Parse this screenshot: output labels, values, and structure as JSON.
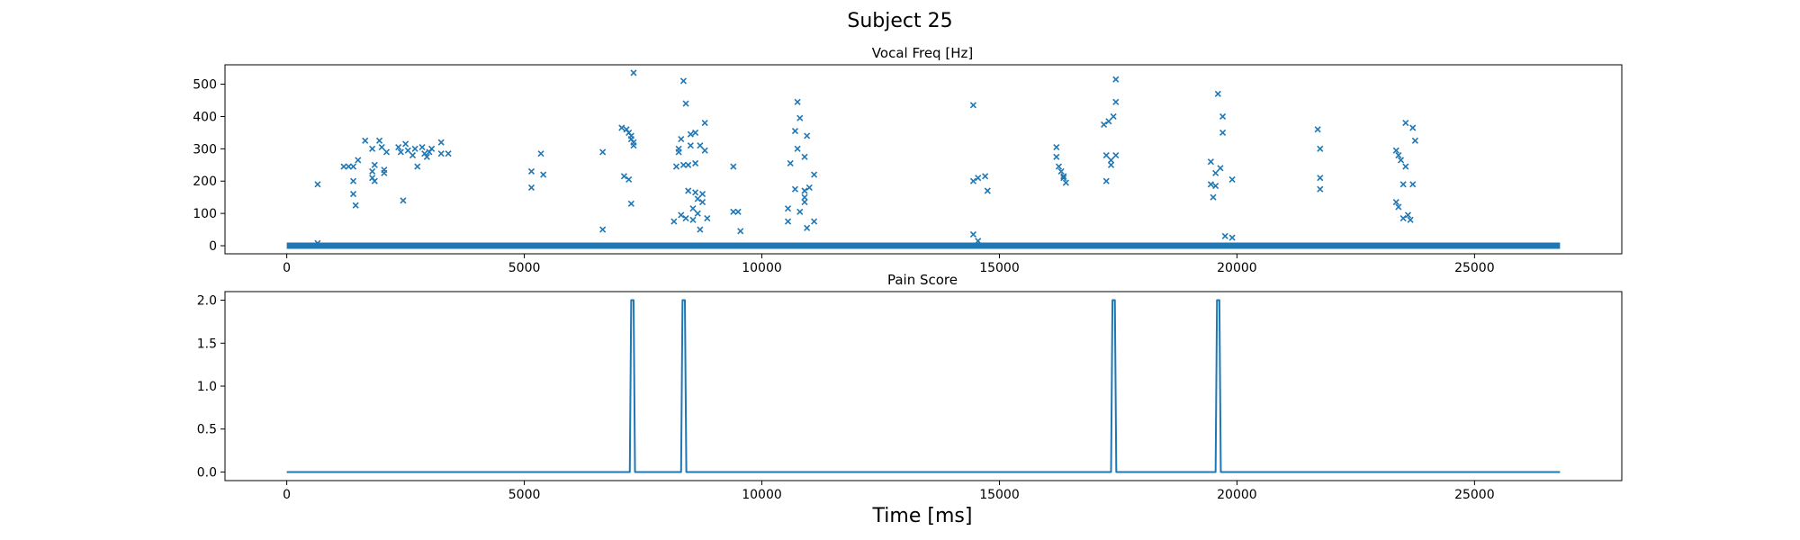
{
  "figure": {
    "suptitle": "Subject 25",
    "xlabel": "Time [ms]"
  },
  "colors": {
    "series": "#1f77b4",
    "axes": "#000000"
  },
  "chart_data": [
    {
      "type": "scatter",
      "title": "Vocal Freq [Hz]",
      "marker": "x",
      "xlim": [
        -1300,
        28100
      ],
      "ylim": [
        -25,
        560
      ],
      "xticks": [
        0,
        5000,
        10000,
        15000,
        20000,
        25000
      ],
      "yticks": [
        0,
        100,
        200,
        300,
        400,
        500
      ],
      "baseline": {
        "x_start": 0,
        "x_end": 26800,
        "y": 0
      },
      "points": [
        [
          650,
          190
        ],
        [
          650,
          8
        ],
        [
          1200,
          245
        ],
        [
          1300,
          245
        ],
        [
          1400,
          245
        ],
        [
          1400,
          200
        ],
        [
          1400,
          160
        ],
        [
          1450,
          125
        ],
        [
          1500,
          265
        ],
        [
          1650,
          325
        ],
        [
          1800,
          300
        ],
        [
          1850,
          250
        ],
        [
          1800,
          230
        ],
        [
          1800,
          210
        ],
        [
          1850,
          200
        ],
        [
          1950,
          325
        ],
        [
          2000,
          305
        ],
        [
          2050,
          235
        ],
        [
          2050,
          225
        ],
        [
          2100,
          290
        ],
        [
          2350,
          305
        ],
        [
          2400,
          290
        ],
        [
          2450,
          140
        ],
        [
          2500,
          315
        ],
        [
          2550,
          295
        ],
        [
          2650,
          280
        ],
        [
          2700,
          300
        ],
        [
          2750,
          245
        ],
        [
          2850,
          305
        ],
        [
          2900,
          285
        ],
        [
          2950,
          275
        ],
        [
          3000,
          290
        ],
        [
          3050,
          300
        ],
        [
          3250,
          320
        ],
        [
          3250,
          285
        ],
        [
          3400,
          285
        ],
        [
          5150,
          230
        ],
        [
          5150,
          180
        ],
        [
          5350,
          285
        ],
        [
          5400,
          220
        ],
        [
          6650,
          290
        ],
        [
          6650,
          50
        ],
        [
          7050,
          365
        ],
        [
          7100,
          215
        ],
        [
          7150,
          360
        ],
        [
          7200,
          205
        ],
        [
          7200,
          350
        ],
        [
          7250,
          340
        ],
        [
          7250,
          330
        ],
        [
          7300,
          320
        ],
        [
          7300,
          310
        ],
        [
          7250,
          130
        ],
        [
          7300,
          535
        ],
        [
          8150,
          75
        ],
        [
          8200,
          245
        ],
        [
          8250,
          300
        ],
        [
          8250,
          290
        ],
        [
          8300,
          330
        ],
        [
          8300,
          95
        ],
        [
          8350,
          250
        ],
        [
          8350,
          510
        ],
        [
          8400,
          440
        ],
        [
          8400,
          85
        ],
        [
          8450,
          250
        ],
        [
          8450,
          170
        ],
        [
          8500,
          345
        ],
        [
          8500,
          310
        ],
        [
          8550,
          115
        ],
        [
          8550,
          80
        ],
        [
          8600,
          350
        ],
        [
          8600,
          255
        ],
        [
          8600,
          165
        ],
        [
          8650,
          145
        ],
        [
          8650,
          100
        ],
        [
          8700,
          310
        ],
        [
          8700,
          50
        ],
        [
          8750,
          160
        ],
        [
          8750,
          135
        ],
        [
          8800,
          295
        ],
        [
          8800,
          380
        ],
        [
          8850,
          85
        ],
        [
          9400,
          245
        ],
        [
          9400,
          105
        ],
        [
          9500,
          105
        ],
        [
          9550,
          45
        ],
        [
          10550,
          115
        ],
        [
          10550,
          75
        ],
        [
          10600,
          255
        ],
        [
          10700,
          355
        ],
        [
          10700,
          175
        ],
        [
          10750,
          300
        ],
        [
          10750,
          445
        ],
        [
          10800,
          395
        ],
        [
          10800,
          105
        ],
        [
          10900,
          275
        ],
        [
          10900,
          170
        ],
        [
          10900,
          150
        ],
        [
          10900,
          135
        ],
        [
          10950,
          340
        ],
        [
          10950,
          55
        ],
        [
          11000,
          180
        ],
        [
          11100,
          220
        ],
        [
          11100,
          75
        ],
        [
          14450,
          435
        ],
        [
          14450,
          200
        ],
        [
          14450,
          35
        ],
        [
          14550,
          210
        ],
        [
          14550,
          15
        ],
        [
          14700,
          215
        ],
        [
          14750,
          170
        ],
        [
          16200,
          305
        ],
        [
          16200,
          275
        ],
        [
          16250,
          245
        ],
        [
          16300,
          230
        ],
        [
          16350,
          210
        ],
        [
          16400,
          195
        ],
        [
          16350,
          215
        ],
        [
          17200,
          375
        ],
        [
          17250,
          280
        ],
        [
          17250,
          200
        ],
        [
          17300,
          385
        ],
        [
          17350,
          265
        ],
        [
          17350,
          250
        ],
        [
          17400,
          400
        ],
        [
          17450,
          445
        ],
        [
          17450,
          515
        ],
        [
          17450,
          280
        ],
        [
          19450,
          260
        ],
        [
          19450,
          190
        ],
        [
          19500,
          150
        ],
        [
          19550,
          225
        ],
        [
          19550,
          185
        ],
        [
          19600,
          470
        ],
        [
          19650,
          240
        ],
        [
          19700,
          400
        ],
        [
          19700,
          350
        ],
        [
          19750,
          30
        ],
        [
          19900,
          205
        ],
        [
          19900,
          25
        ],
        [
          21700,
          360
        ],
        [
          21750,
          300
        ],
        [
          21750,
          210
        ],
        [
          21750,
          175
        ],
        [
          23350,
          295
        ],
        [
          23350,
          135
        ],
        [
          23400,
          280
        ],
        [
          23400,
          120
        ],
        [
          23450,
          265
        ],
        [
          23500,
          190
        ],
        [
          23500,
          85
        ],
        [
          23550,
          380
        ],
        [
          23550,
          245
        ],
        [
          23600,
          95
        ],
        [
          23650,
          80
        ],
        [
          23700,
          365
        ],
        [
          23700,
          190
        ],
        [
          23750,
          325
        ]
      ]
    },
    {
      "type": "line",
      "title": "Pain Score",
      "xlim": [
        -1300,
        28100
      ],
      "ylim": [
        -0.1,
        2.1
      ],
      "xticks": [
        0,
        5000,
        10000,
        15000,
        20000,
        25000
      ],
      "yticks": [
        0.0,
        0.5,
        1.0,
        1.5,
        2.0
      ],
      "ytick_labels": [
        "0.0",
        "0.5",
        "1.0",
        "1.5",
        "2.0"
      ],
      "x": [
        0,
        7220,
        7250,
        7300,
        7330,
        8300,
        8330,
        8380,
        8410,
        17350,
        17380,
        17430,
        17460,
        19550,
        19580,
        19630,
        19660,
        26800
      ],
      "y": [
        0,
        0,
        2,
        2,
        0,
        0,
        2,
        2,
        0,
        0,
        2,
        2,
        0,
        0,
        2,
        2,
        0,
        0
      ]
    }
  ]
}
